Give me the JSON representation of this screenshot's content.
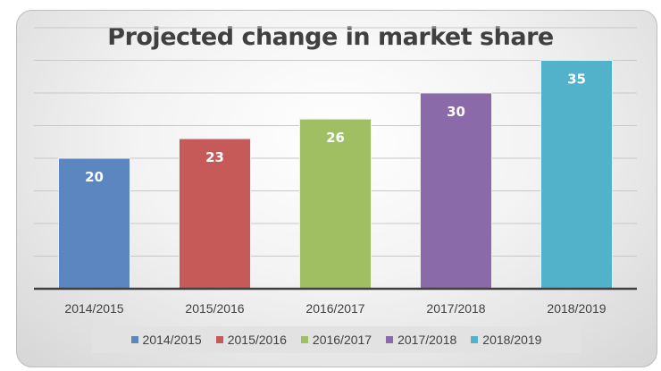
{
  "chart_data": {
    "type": "bar",
    "title": "Projected change in market share",
    "categories": [
      "2014/2015",
      "2015/2016",
      "2016/2017",
      "2017/2018",
      "2018/2019"
    ],
    "values": [
      20,
      23,
      26,
      30,
      35
    ],
    "colors": [
      "#5b86c0",
      "#c65a58",
      "#9fbf62",
      "#8a6aa8",
      "#52b2c9"
    ],
    "legend": [
      "2014/2015",
      "2015/2016",
      "2016/2017",
      "2017/2018",
      "2018/2019"
    ],
    "ylim": [
      0,
      40
    ],
    "grid": true,
    "legend_position": "bottom",
    "data_labels": true
  }
}
